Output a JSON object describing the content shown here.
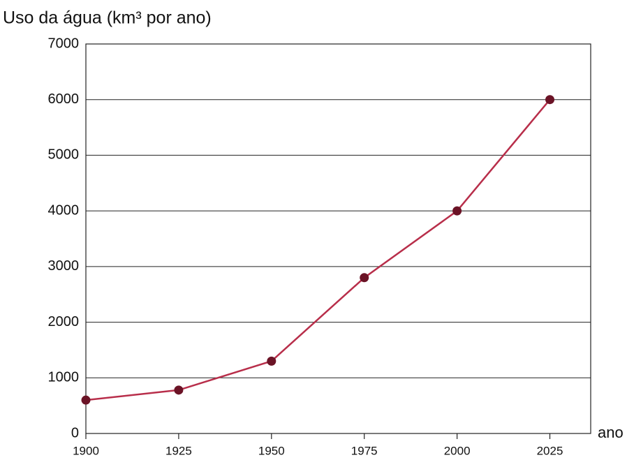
{
  "chart_data": {
    "type": "line",
    "y_axis_label": "Uso da água (km³ por ano)",
    "x_axis_label": "ano",
    "x": [
      1900,
      1925,
      1950,
      1975,
      2000,
      2025
    ],
    "series": [
      {
        "name": "Uso da água",
        "color": "#b82e4a",
        "marker_color": "#6b1326",
        "values": [
          600,
          780,
          1300,
          2800,
          4000,
          6000
        ]
      }
    ],
    "xlim": [
      1900,
      2036
    ],
    "xticks": [
      1900,
      1925,
      1950,
      1975,
      2000,
      2025
    ],
    "ylim": [
      0,
      7000
    ],
    "yticks": [
      0,
      1000,
      2000,
      3000,
      4000,
      5000,
      6000,
      7000
    ],
    "grid": true
  }
}
